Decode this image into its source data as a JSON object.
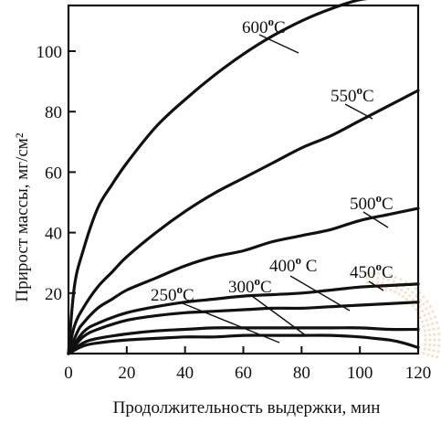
{
  "chart_data": {
    "type": "line",
    "xlabel": "Продолжительность выдержки, мин",
    "ylabel": "Прирост массы, мг/см²",
    "xlim": [
      0,
      120
    ],
    "ylim": [
      0,
      118
    ],
    "xticks": [
      0,
      20,
      40,
      60,
      80,
      100,
      120
    ],
    "yticks": [
      20,
      40,
      60,
      80,
      100
    ],
    "grid": false,
    "legend": "inline labels",
    "series": [
      {
        "name": "600°C",
        "x": [
          0,
          2,
          5,
          10,
          15,
          20,
          30,
          40,
          50,
          60,
          70,
          80,
          90,
          100,
          110
        ],
        "y": [
          0,
          22,
          34,
          48,
          56,
          63,
          75,
          84,
          92,
          99,
          105,
          110,
          114,
          117,
          118
        ]
      },
      {
        "name": "550°C",
        "x": [
          0,
          2,
          5,
          10,
          15,
          20,
          30,
          40,
          50,
          60,
          70,
          80,
          90,
          100,
          110,
          120
        ],
        "y": [
          0,
          9,
          15,
          22,
          27,
          32,
          40,
          47,
          53,
          58,
          63,
          68,
          72,
          77,
          82,
          87
        ]
      },
      {
        "name": "500°C",
        "x": [
          0,
          3,
          5,
          10,
          15,
          20,
          30,
          40,
          50,
          60,
          70,
          80,
          90,
          100,
          110,
          120
        ],
        "y": [
          0,
          7,
          10,
          15,
          18,
          21,
          25,
          29,
          32,
          34,
          37,
          39,
          41,
          44,
          46,
          48
        ]
      },
      {
        "name": "450°C",
        "x": [
          0,
          5,
          10,
          20,
          30,
          40,
          50,
          60,
          70,
          80,
          90,
          100,
          110,
          120
        ],
        "y": [
          0,
          7,
          10,
          13.5,
          15.5,
          17,
          18,
          19,
          19.5,
          20,
          21,
          22,
          22.5,
          23
        ]
      },
      {
        "name": "400°C",
        "x": [
          0,
          5,
          10,
          20,
          30,
          40,
          50,
          60,
          70,
          80,
          90,
          100,
          110,
          120
        ],
        "y": [
          0,
          5.5,
          8,
          11,
          12.5,
          13.5,
          14,
          14.5,
          15,
          15,
          15.5,
          16,
          16.5,
          17
        ]
      },
      {
        "name": "300°C",
        "x": [
          0,
          5,
          10,
          20,
          30,
          40,
          50,
          60,
          70,
          80,
          90,
          100,
          110,
          120
        ],
        "y": [
          0,
          3.5,
          5,
          6.5,
          7.5,
          8,
          8.5,
          8.5,
          8.5,
          8.5,
          8.5,
          8.5,
          8,
          8
        ]
      },
      {
        "name": "250°C",
        "x": [
          0,
          5,
          10,
          20,
          30,
          40,
          50,
          60,
          70,
          80,
          90,
          100,
          105,
          110,
          115,
          120
        ],
        "y": [
          0,
          2.5,
          3.5,
          4.5,
          5,
          5.5,
          5.5,
          6,
          6,
          6,
          6,
          5.5,
          5,
          4.5,
          3.5,
          2
        ]
      }
    ],
    "labels": [
      {
        "text": "600",
        "deg": "o",
        "unit": "C",
        "series": "600°C"
      },
      {
        "text": "550",
        "deg": "o",
        "unit": "C",
        "series": "550°C"
      },
      {
        "text": "500",
        "deg": "o",
        "unit": "C",
        "series": "500°C"
      },
      {
        "text": "450",
        "deg": "o",
        "unit": "C",
        "series": "450°C"
      },
      {
        "text": "400",
        "deg": "o",
        "unit": " C",
        "series": "400°C"
      },
      {
        "text": "300",
        "deg": "o",
        "unit": "C",
        "series": "300°C"
      },
      {
        "text": "250",
        "deg": "o",
        "unit": "C",
        "series": "250°C"
      }
    ]
  }
}
